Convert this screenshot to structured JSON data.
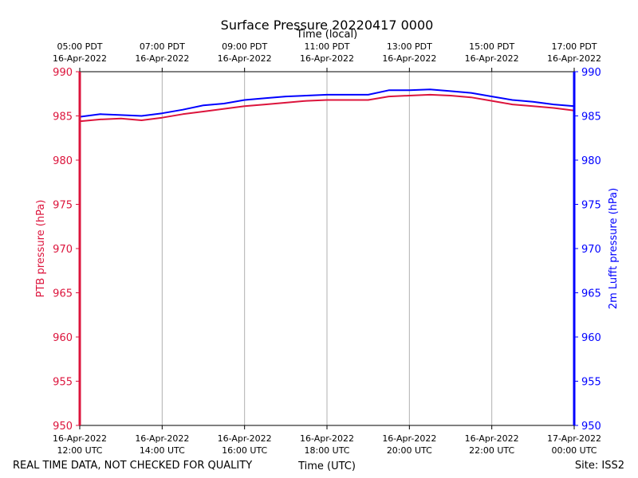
{
  "chart_data": {
    "type": "line",
    "title": "Surface Pressure 20220417 0000",
    "top_axis_label": "Time (local)",
    "xlabel": "Time (UTC)",
    "ylabel_left": "PTB pressure (hPa)",
    "ylabel_right": "2m Lufft pressure (hPa)",
    "ylim": [
      950,
      990
    ],
    "yticks": [
      950,
      955,
      960,
      965,
      970,
      975,
      980,
      985,
      990
    ],
    "xlim_hours": [
      0,
      12
    ],
    "x_ticks_utc": [
      {
        "h": 0,
        "date": "16-Apr-2022",
        "time": "12:00 UTC"
      },
      {
        "h": 2,
        "date": "16-Apr-2022",
        "time": "14:00 UTC"
      },
      {
        "h": 4,
        "date": "16-Apr-2022",
        "time": "16:00 UTC"
      },
      {
        "h": 6,
        "date": "16-Apr-2022",
        "time": "18:00 UTC"
      },
      {
        "h": 8,
        "date": "16-Apr-2022",
        "time": "20:00 UTC"
      },
      {
        "h": 10,
        "date": "16-Apr-2022",
        "time": "22:00 UTC"
      },
      {
        "h": 12,
        "date": "17-Apr-2022",
        "time": "00:00 UTC"
      }
    ],
    "x_ticks_local": [
      {
        "h": 0,
        "time": "05:00 PDT",
        "date": "16-Apr-2022"
      },
      {
        "h": 2,
        "time": "07:00 PDT",
        "date": "16-Apr-2022"
      },
      {
        "h": 4,
        "time": "09:00 PDT",
        "date": "16-Apr-2022"
      },
      {
        "h": 6,
        "time": "11:00 PDT",
        "date": "16-Apr-2022"
      },
      {
        "h": 8,
        "time": "13:00 PDT",
        "date": "16-Apr-2022"
      },
      {
        "h": 10,
        "time": "15:00 PDT",
        "date": "16-Apr-2022"
      },
      {
        "h": 12,
        "time": "17:00 PDT",
        "date": "16-Apr-2022"
      }
    ],
    "series": [
      {
        "name": "PTB pressure",
        "axis": "left",
        "color": "#dc143c",
        "x": [
          0,
          0.5,
          1,
          1.5,
          2,
          2.5,
          3,
          3.5,
          4,
          4.5,
          5,
          5.5,
          6,
          6.5,
          7,
          7.5,
          8,
          8.5,
          9,
          9.5,
          10,
          10.5,
          11,
          11.5,
          12
        ],
        "values": [
          984.4,
          984.6,
          984.7,
          984.5,
          984.8,
          985.2,
          985.5,
          985.8,
          986.1,
          986.3,
          986.5,
          986.7,
          986.8,
          986.8,
          986.8,
          987.2,
          987.3,
          987.4,
          987.3,
          987.1,
          986.7,
          986.3,
          986.1,
          985.9,
          985.6
        ]
      },
      {
        "name": "2m Lufft pressure",
        "axis": "right",
        "color": "#0000ff",
        "x": [
          0,
          0.5,
          1,
          1.5,
          2,
          2.5,
          3,
          3.5,
          4,
          4.5,
          5,
          5.5,
          6,
          6.5,
          7,
          7.5,
          8,
          8.5,
          9,
          9.5,
          10,
          10.5,
          11,
          11.5,
          12
        ],
        "values": [
          984.9,
          985.2,
          985.1,
          985.0,
          985.3,
          985.7,
          986.2,
          986.4,
          986.8,
          987.0,
          987.2,
          987.3,
          987.4,
          987.4,
          987.4,
          987.9,
          987.9,
          988.0,
          987.8,
          987.6,
          987.2,
          986.8,
          986.6,
          986.3,
          986.1
        ]
      }
    ]
  },
  "footer": {
    "left_note": "REAL TIME DATA, NOT CHECKED FOR QUALITY",
    "site": "Site: ISS2"
  },
  "colors": {
    "left_axis": "#dc143c",
    "right_axis": "#0000ff",
    "grid": "#b0b0b0"
  }
}
